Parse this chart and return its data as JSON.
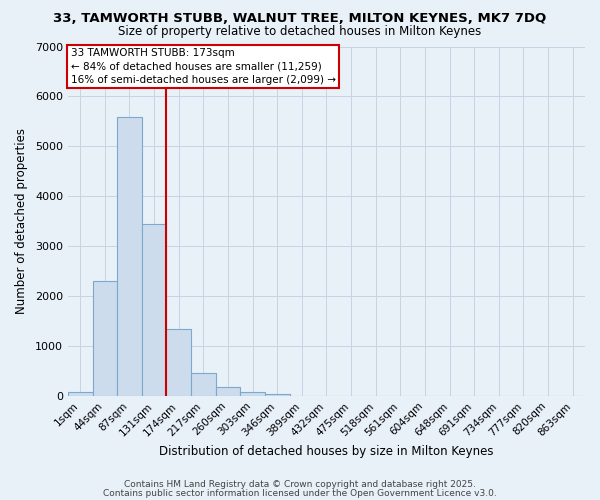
{
  "title": "33, TAMWORTH STUBB, WALNUT TREE, MILTON KEYNES, MK7 7DQ",
  "subtitle": "Size of property relative to detached houses in Milton Keynes",
  "xlabel": "Distribution of detached houses by size in Milton Keynes",
  "ylabel": "Number of detached properties",
  "bin_labels": [
    "1sqm",
    "44sqm",
    "87sqm",
    "131sqm",
    "174sqm",
    "217sqm",
    "260sqm",
    "303sqm",
    "346sqm",
    "389sqm",
    "432sqm",
    "475sqm",
    "518sqm",
    "561sqm",
    "604sqm",
    "648sqm",
    "691sqm",
    "734sqm",
    "777sqm",
    "820sqm",
    "863sqm"
  ],
  "bar_values": [
    75,
    2300,
    5580,
    3450,
    1340,
    460,
    170,
    75,
    30,
    0,
    0,
    0,
    0,
    0,
    0,
    0,
    0,
    0,
    0,
    0,
    0
  ],
  "bar_color": "#ccdcec",
  "bar_edge_color": "#7ba8cc",
  "vline_x_index": 4,
  "vline_color": "#cc0000",
  "annotation_title": "33 TAMWORTH STUBB: 173sqm",
  "annotation_line2": "← 84% of detached houses are smaller (11,259)",
  "annotation_line3": "16% of semi-detached houses are larger (2,099) →",
  "annotation_box_facecolor": "#ffffff",
  "annotation_box_edgecolor": "#cc0000",
  "ylim": [
    0,
    7000
  ],
  "yticks": [
    0,
    1000,
    2000,
    3000,
    4000,
    5000,
    6000,
    7000
  ],
  "background_color": "#e8f0f8",
  "grid_color": "#c8d4e4",
  "footer_line1": "Contains HM Land Registry data © Crown copyright and database right 2025.",
  "footer_line2": "Contains public sector information licensed under the Open Government Licence v3.0."
}
